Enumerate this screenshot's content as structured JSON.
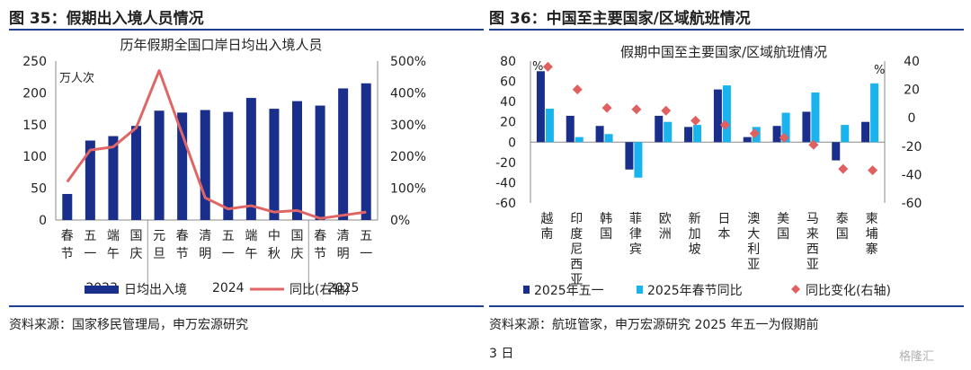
{
  "left": {
    "fig_title": "图 35：假期出入境人员情况",
    "source": "资料来源：国家移民管理局，申万宏源研究",
    "chart_data": {
      "type": "bar+line",
      "title": "历年假期全国口岸日均出入境人员",
      "y_unit": "万人次",
      "categories": [
        "春节",
        "五一",
        "端午",
        "国庆",
        "元旦",
        "春节",
        "清明",
        "五一",
        "端午",
        "中秋",
        "国庆",
        "春节",
        "清明",
        "五一"
      ],
      "year_groups": [
        {
          "label": "2023",
          "start": 0,
          "end": 3
        },
        {
          "label": "2024",
          "start": 4,
          "end": 10
        },
        {
          "label": "2025",
          "start": 11,
          "end": 13
        }
      ],
      "series": [
        {
          "name": "日均出入境",
          "kind": "bar",
          "axis": "left",
          "color": "#1a2f8c",
          "values": [
            41,
            125,
            132,
            148,
            172,
            169,
            173,
            170,
            192,
            175,
            187,
            180,
            207,
            215
          ]
        },
        {
          "name": "同比(右轴)",
          "kind": "line",
          "axis": "right",
          "color": "#e06666",
          "values": [
            120,
            220,
            230,
            290,
            470,
            270,
            70,
            35,
            45,
            25,
            30,
            5,
            15,
            25
          ]
        }
      ],
      "y_left": {
        "min": 0,
        "max": 250,
        "ticks": [
          0,
          50,
          100,
          150,
          200,
          250
        ]
      },
      "y_right": {
        "min": 0,
        "max": 500,
        "ticks": [
          0,
          100,
          200,
          300,
          400,
          500
        ],
        "tick_labels": [
          "0%",
          "100%",
          "200%",
          "300%",
          "400%",
          "500%"
        ]
      },
      "legend_position": "bottom"
    }
  },
  "right": {
    "fig_title": "图 36：中国至主要国家/区域航班情况",
    "source_line1": "资料来源：航班管家，申万宏源研究  2025 年五一为假期前",
    "source_line2": "3 日",
    "chart_data": {
      "type": "bar+scatter",
      "title": "假期中国至主要国家/区域航班情况",
      "left_unit": "%",
      "right_unit": "%",
      "categories": [
        "越南",
        "印度尼西亚",
        "韩国",
        "菲律宾",
        "欧洲",
        "新加坡",
        "日本",
        "澳大利亚",
        "美国",
        "马来西亚",
        "泰国",
        "柬埔寨"
      ],
      "series": [
        {
          "name": "2025年五一",
          "kind": "bar",
          "axis": "left",
          "color": "#1a2f8c",
          "values": [
            70,
            26,
            16,
            -27,
            26,
            15,
            52,
            5,
            16,
            30,
            -18,
            20
          ]
        },
        {
          "name": "2025年春节同比",
          "kind": "bar",
          "axis": "left",
          "color": "#19b3ee",
          "values": [
            33,
            5,
            8,
            -35,
            20,
            17,
            56,
            15,
            29,
            49,
            17,
            58
          ]
        },
        {
          "name": "同比变化(右轴)",
          "kind": "scatter",
          "axis": "right",
          "color": "#e06060",
          "values": [
            36,
            20,
            7,
            6,
            5,
            -2,
            -5,
            -11,
            -14,
            -19,
            -36,
            -37
          ]
        }
      ],
      "y_left": {
        "min": -60,
        "max": 80,
        "ticks": [
          -60,
          -40,
          -20,
          0,
          20,
          40,
          60,
          80
        ]
      },
      "y_right": {
        "min": -60,
        "max": 40,
        "ticks": [
          -60,
          -40,
          -20,
          0,
          20,
          40
        ]
      },
      "legend_position": "bottom"
    }
  },
  "watermark": "格隆汇"
}
